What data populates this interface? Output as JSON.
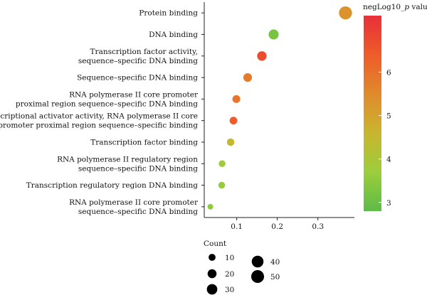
{
  "chart_data": {
    "type": "scatter",
    "title": "",
    "xlabel": "",
    "ylabel": "",
    "xlim": [
      0.02,
      0.39
    ],
    "x_ticks": [
      0.1,
      0.2,
      0.3
    ],
    "x_tick_labels": [
      "0.1",
      "0.2",
      "0.3"
    ],
    "categories": [
      [
        "Protein binding"
      ],
      [
        "DNA binding"
      ],
      [
        "Transcription factor activity,",
        "sequence–specific DNA binding"
      ],
      [
        "Sequence–specific DNA binding"
      ],
      [
        "RNA polymerase II core promoter",
        "proximal region sequence–specific DNA binding"
      ],
      [
        "Transcriptional activator activity, RNA polymerase II core",
        "promoter proximal region sequence–specific binding"
      ],
      [
        "Transcription factor binding"
      ],
      [
        "RNA polymerase II regulatory region",
        "sequence–specific DNA binding"
      ],
      [
        "Transcription regulatory region DNA binding"
      ],
      [
        "RNA polymerase II core promoter",
        "sequence–specific DNA binding"
      ]
    ],
    "points": [
      {
        "x": 0.368,
        "count": 52,
        "neglog10p": 5.3
      },
      {
        "x": 0.191,
        "count": 27,
        "neglog10p": 3.2
      },
      {
        "x": 0.162,
        "count": 23,
        "neglog10p": 6.7
      },
      {
        "x": 0.127,
        "count": 18,
        "neglog10p": 5.8
      },
      {
        "x": 0.099,
        "count": 14,
        "neglog10p": 5.9
      },
      {
        "x": 0.092,
        "count": 13,
        "neglog10p": 6.4
      },
      {
        "x": 0.085,
        "count": 12,
        "neglog10p": 4.5
      },
      {
        "x": 0.064,
        "count": 9,
        "neglog10p": 3.8
      },
      {
        "x": 0.063,
        "count": 9,
        "neglog10p": 3.6
      },
      {
        "x": 0.035,
        "count": 5,
        "neglog10p": 3.5
      }
    ],
    "size_legend": {
      "title": "Count",
      "entries": [
        {
          "label": "10",
          "value": 10
        },
        {
          "label": "20",
          "value": 20
        },
        {
          "label": "30",
          "value": 30
        },
        {
          "label": "40",
          "value": 40
        },
        {
          "label": "50",
          "value": 50
        }
      ]
    },
    "color_legend": {
      "title_prefix": "negLog10_",
      "title_italic": "p",
      "title_suffix": " value",
      "range": [
        2.8,
        7.3
      ],
      "ticks": [
        3,
        4,
        5,
        6
      ],
      "tick_labels": [
        "3",
        "4",
        "5",
        "6"
      ],
      "colors": [
        "#5dbb47",
        "#9ccd3c",
        "#c9b52f",
        "#e08a2c",
        "#ef5b2a",
        "#e8303a"
      ]
    },
    "grid": false,
    "legend_placement": "right (color bar), bottom (size)"
  }
}
